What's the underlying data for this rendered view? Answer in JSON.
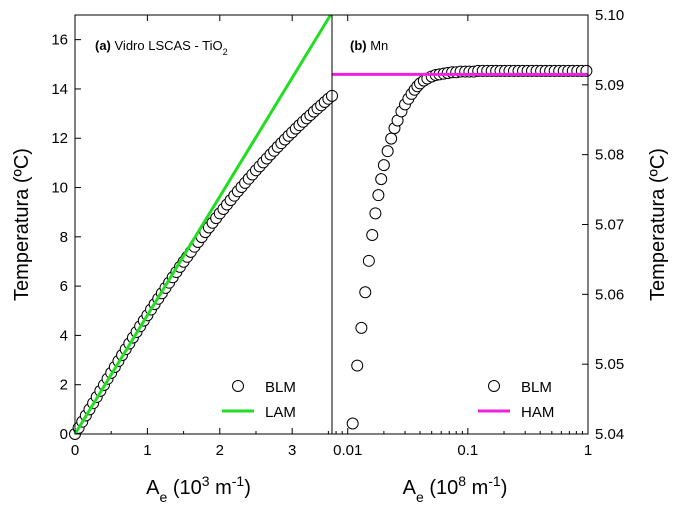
{
  "chart_data": [
    {
      "type": "scatter",
      "panel_label_prefix": "(a)",
      "panel_label": "Vidro LSCAS - TiO",
      "panel_label_subscript": "2",
      "xlabel": "A",
      "xlabel_subscript": "e",
      "xlabel_unit_prefix": " (10",
      "xlabel_unit_exp": "3",
      "xlabel_unit_mid": " m",
      "xlabel_unit_exp2": "-1",
      "xlabel_unit_suffix": ")",
      "ylabel": "Temperatura (ºC)",
      "xlim": [
        0,
        3.55
      ],
      "ylim": [
        0,
        17
      ],
      "x_ticks": [
        0,
        1,
        2,
        3
      ],
      "y_ticks": [
        0,
        2,
        4,
        6,
        8,
        10,
        12,
        14,
        16
      ],
      "x_scale": "linear",
      "legend_position": "bottom-right",
      "series": [
        {
          "name": "BLM",
          "marker": "open-circle",
          "color": "#000000",
          "x": [
            0.0,
            0.05,
            0.1,
            0.15,
            0.2,
            0.25,
            0.3,
            0.35,
            0.4,
            0.45,
            0.5,
            0.55,
            0.6,
            0.65,
            0.7,
            0.75,
            0.8,
            0.85,
            0.9,
            0.95,
            1.0,
            1.05,
            1.1,
            1.15,
            1.2,
            1.25,
            1.3,
            1.35,
            1.4,
            1.45,
            1.5,
            1.55,
            1.6,
            1.65,
            1.7,
            1.75,
            1.8,
            1.85,
            1.9,
            1.95,
            2.0,
            2.05,
            2.1,
            2.15,
            2.2,
            2.25,
            2.3,
            2.35,
            2.4,
            2.45,
            2.5,
            2.55,
            2.6,
            2.65,
            2.7,
            2.75,
            2.8,
            2.85,
            2.9,
            2.95,
            3.0,
            3.05,
            3.1,
            3.15,
            3.2,
            3.25,
            3.3,
            3.35,
            3.4,
            3.45,
            3.5,
            3.55
          ],
          "y": [
            0.0,
            0.25,
            0.5,
            0.75,
            1.0,
            1.25,
            1.5,
            1.75,
            1.99,
            2.24,
            2.48,
            2.72,
            2.96,
            3.2,
            3.44,
            3.67,
            3.91,
            4.14,
            4.37,
            4.6,
            4.82,
            5.05,
            5.27,
            5.49,
            5.71,
            5.93,
            6.14,
            6.36,
            6.57,
            6.78,
            6.99,
            7.19,
            7.39,
            7.6,
            7.79,
            7.99,
            8.19,
            8.38,
            8.57,
            8.76,
            8.95,
            9.13,
            9.31,
            9.49,
            9.67,
            9.85,
            10.02,
            10.19,
            10.36,
            10.53,
            10.7,
            10.86,
            11.02,
            11.18,
            11.34,
            11.49,
            11.65,
            11.8,
            11.95,
            12.1,
            12.24,
            12.39,
            12.53,
            12.67,
            12.81,
            12.94,
            13.08,
            13.21,
            13.34,
            13.47,
            13.6,
            13.72
          ]
        },
        {
          "name": "LAM",
          "marker": "line",
          "color": "#22dd22",
          "x": [
            0,
            3.55
          ],
          "y": [
            0,
            17.1
          ]
        }
      ]
    },
    {
      "type": "scatter",
      "panel_label_prefix": "(b)",
      "panel_label": "Mn",
      "xlabel": "A",
      "xlabel_subscript": "e",
      "xlabel_unit_prefix": " (10",
      "xlabel_unit_exp": "8",
      "xlabel_unit_mid": " m",
      "xlabel_unit_exp2": "-1",
      "xlabel_unit_suffix": ")",
      "ylabel": "Temperatura (ºC)",
      "xlim": [
        0.0074,
        1
      ],
      "ylim": [
        5.04,
        5.1
      ],
      "x_ticks": [
        0.01,
        0.1,
        1
      ],
      "x_tick_labels": [
        "0.01",
        "0.1",
        "1"
      ],
      "y_ticks": [
        5.04,
        5.05,
        5.06,
        5.07,
        5.08,
        5.09,
        5.1
      ],
      "y_tick_labels": [
        "5.04",
        "5.05",
        "5.06",
        "5.07",
        "5.08",
        "5.09",
        "5.10"
      ],
      "x_scale": "log",
      "legend_position": "bottom-right",
      "series": [
        {
          "name": "BLM",
          "marker": "open-circle",
          "color": "#000000",
          "x": [
            0.011,
            0.012,
            0.013,
            0.014,
            0.015,
            0.016,
            0.017,
            0.018,
            0.019,
            0.02,
            0.0215,
            0.023,
            0.0245,
            0.026,
            0.028,
            0.03,
            0.032,
            0.034,
            0.036,
            0.038,
            0.04,
            0.043,
            0.046,
            0.05,
            0.054,
            0.058,
            0.063,
            0.068,
            0.074,
            0.08,
            0.087,
            0.095,
            0.103,
            0.112,
            0.122,
            0.133,
            0.145,
            0.158,
            0.172,
            0.187,
            0.204,
            0.222,
            0.242,
            0.264,
            0.288,
            0.314,
            0.342,
            0.373,
            0.407,
            0.444,
            0.484,
            0.528,
            0.576,
            0.628,
            0.685,
            0.747,
            0.815,
            0.889,
            0.97
          ],
          "y": [
            5.0415,
            5.0498,
            5.0552,
            5.0603,
            5.0648,
            5.0685,
            5.0716,
            5.0742,
            5.0765,
            5.0785,
            5.0805,
            5.0823,
            5.0838,
            5.0849,
            5.0862,
            5.0872,
            5.088,
            5.0887,
            5.0893,
            5.0898,
            5.0902,
            5.0906,
            5.0909,
            5.0912,
            5.0914,
            5.0915,
            5.0916,
            5.0917,
            5.0918,
            5.0918,
            5.0919,
            5.0919,
            5.0919,
            5.0919,
            5.092,
            5.092,
            5.092,
            5.092,
            5.092,
            5.092,
            5.092,
            5.092,
            5.092,
            5.092,
            5.092,
            5.092,
            5.092,
            5.092,
            5.092,
            5.092,
            5.092,
            5.092,
            5.092,
            5.092,
            5.092,
            5.092,
            5.092,
            5.092,
            5.092
          ]
        },
        {
          "name": "HAM",
          "marker": "line",
          "color": "#ee22dd",
          "x": [
            0.0074,
            1
          ],
          "y": [
            5.0915,
            5.0915
          ]
        }
      ]
    }
  ]
}
